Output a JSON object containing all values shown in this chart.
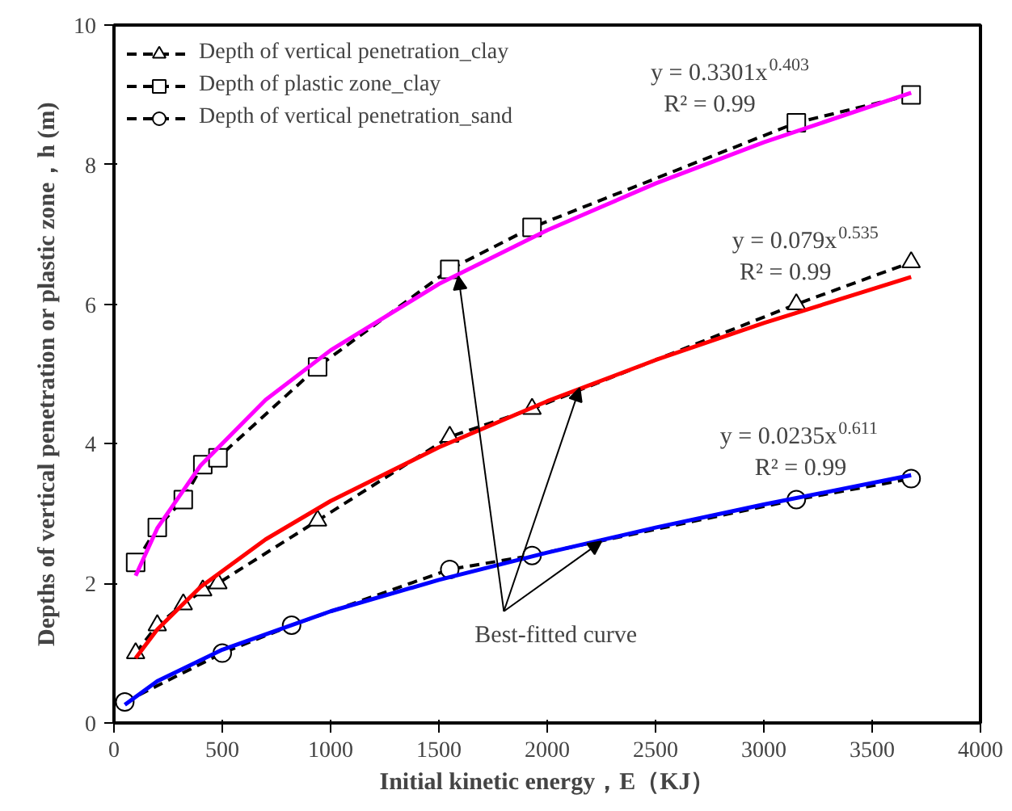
{
  "chart_data": {
    "type": "line",
    "xlabel": "Initial kinetic energy，E（KJ）",
    "ylabel": "Depths of vertical penetration or plastic zone，h (m)",
    "xlim": [
      0,
      4000
    ],
    "xticks": [
      0,
      500,
      1000,
      1500,
      2000,
      2500,
      3000,
      3500,
      4000
    ],
    "ylim": [
      0,
      10
    ],
    "yticks": [
      0,
      2,
      4,
      6,
      8,
      10
    ],
    "grid": false,
    "legend": "top left",
    "line_style": "dashed",
    "series": [
      {
        "name": "Depth of vertical penetration_clay",
        "color": "#000000",
        "marker": "triangle",
        "x": [
          100,
          200,
          320,
          410,
          480,
          940,
          1550,
          1930,
          3150,
          3680
        ],
        "values": [
          1.0,
          1.4,
          1.7,
          1.9,
          2.0,
          2.9,
          4.1,
          4.5,
          6.0,
          6.6
        ]
      },
      {
        "name": "Depth of plastic zone_clay",
        "color": "#000000",
        "marker": "square",
        "x": [
          100,
          200,
          320,
          410,
          480,
          940,
          1550,
          1930,
          3150,
          3680
        ],
        "values": [
          2.3,
          2.8,
          3.2,
          3.7,
          3.8,
          5.1,
          6.5,
          7.1,
          8.6,
          9.0
        ]
      },
      {
        "name": "Depth of vertical penetration_sand",
        "color": "#000000",
        "marker": "circle",
        "x": [
          50,
          500,
          820,
          1550,
          1930,
          3150,
          3680
        ],
        "values": [
          0.3,
          1.0,
          1.4,
          2.2,
          2.4,
          3.2,
          3.5
        ]
      },
      {
        "type": "line",
        "line_style": "solid",
        "marker": "none",
        "color": "#ff00ff",
        "x": [
          100,
          200,
          400,
          700,
          1000,
          1500,
          2000,
          2500,
          3000,
          3680
        ],
        "values": [
          2.11,
          2.79,
          3.69,
          4.63,
          5.34,
          6.29,
          7.06,
          7.73,
          8.32,
          9.03
        ]
      },
      {
        "type": "line",
        "line_style": "solid",
        "marker": "none",
        "color": "#ff0000",
        "x": [
          100,
          200,
          400,
          700,
          1000,
          1500,
          2000,
          2500,
          3000,
          3680
        ],
        "values": [
          0.93,
          1.34,
          1.95,
          2.63,
          3.18,
          3.95,
          4.61,
          5.2,
          5.73,
          6.39
        ]
      },
      {
        "type": "line",
        "line_style": "solid",
        "marker": "none",
        "color": "#0000ff",
        "x": [
          50,
          200,
          500,
          1000,
          1500,
          2000,
          2500,
          3000,
          3680
        ],
        "values": [
          0.26,
          0.6,
          1.05,
          1.6,
          2.05,
          2.44,
          2.8,
          3.13,
          3.55
        ]
      }
    ],
    "annotations": [
      "y = 0.3301x$^{0.403}$",
      "R² = 0.99",
      "y = 0.079x$^{0.535}$",
      "R² = 0.99",
      "y = 0.0235x$^{0.611}$",
      "R² = 0.99",
      {
        "text": "Best-fitted curve",
        "x": 1590,
        "y": 6.4
      }
    ]
  }
}
